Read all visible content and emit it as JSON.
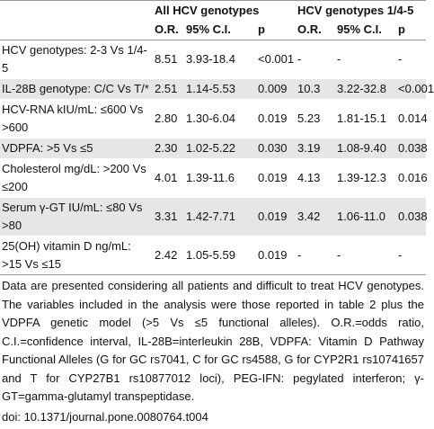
{
  "table": {
    "groups": [
      "All HCV genotypes",
      "HCV genotypes 1/4-5"
    ],
    "columns": [
      "O.R.",
      "95% C.I.",
      "p",
      "O.R.",
      "95% C.I.",
      "p"
    ],
    "rows": [
      [
        "HCV genotypes: 2-3 Vs 1/4-5",
        "8.51",
        "3.93-18.4",
        "<0.001",
        "-",
        "-",
        "-"
      ],
      [
        "IL-28B genotype: C/C Vs T/*",
        "2.51",
        "1.14-5.53",
        "0.009",
        "10.3",
        "3.22-32.8",
        "<0.001"
      ],
      [
        "HCV-RNA kIU/mL: ≤600 Vs >600",
        "2.80",
        "1.30-6.04",
        "0.019",
        "5.23",
        "1.81-15.1",
        "0.014"
      ],
      [
        "VDPFA: >5 Vs ≤5",
        "2.30",
        "1.02-5.22",
        "0.030",
        "3.19",
        "1.08-9.40",
        "0.038"
      ],
      [
        "Cholesterol mg/dL: >200 Vs ≤200",
        "4.01",
        "1.39-11.6",
        "0.019",
        "4.13",
        "1.39-12.3",
        "0.016"
      ],
      [
        "Serum γ-GT IU/mL: ≤80 Vs >80",
        "3.31",
        "1.42-7.71",
        "0.019",
        "3.42",
        "1.06-11.0",
        "0.038"
      ],
      [
        "25(OH) vitamin D ng/mL: >15 Vs ≤15",
        "2.42",
        "1.05-5.59",
        "0.019",
        "-",
        "-",
        "-"
      ]
    ]
  },
  "footnote": "Data are presented considering all patients and difficult to treat HCV genotypes. The variables included in the analysis were those reported in table 2 plus the VDPFA genetic model (>5 Vs ≤5 functional alleles). O.R.=odds ratio, C.I.=confidence interval, IL-28B=interleukin 28B, VDPFA: Vitamin D Pathway Functional Alleles (G for GC rs7041, C for GC rs4588, G for CYP2R1 rs10741657 and T for CYP27B1 rs10877012 loci), PEG-IFN: pegylated interferon; γ-GT=gamma-glutamyl transpeptidase.",
  "doi": "doi: 10.1371/journal.pone.0080764.t004"
}
